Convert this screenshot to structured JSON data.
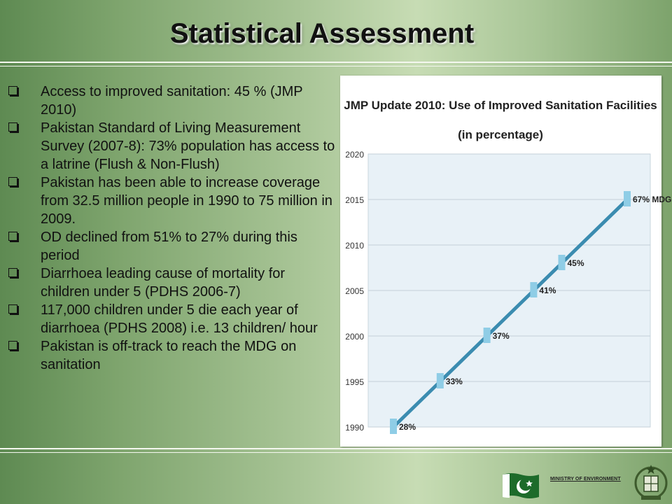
{
  "slide": {
    "title": "Statistical Assessment",
    "bullets": [
      "Access to improved sanitation: 45 % (JMP 2010)",
      "Pakistan Standard of Living Measurement Survey (2007-8): 73% population has access to a latrine (Flush & Non-Flush)",
      "Pakistan has been able to increase coverage from 32.5 million people in 1990 to 75 million in 2009.",
      "OD declined from 51% to 27% during this period",
      "Diarrhoea leading cause of mortality for children under 5 (PDHS 2006-7)",
      "117,000 children under 5 die each year of diarrhoea (PDHS 2008) i.e. 13 children/ hour",
      "Pakistan is off-track to reach the MDG on sanitation"
    ],
    "bullet_icon": "hollow-square-icon",
    "footer": "MINISTRY OF ENVIRONMENT",
    "colors": {
      "line": "#3b8cb0",
      "marker": "#8fcde6",
      "plot_bg": "#e8f1f7"
    }
  },
  "chart_data": {
    "type": "line",
    "title": "JMP Update 2010: Use of Improved Sanitation Facilities",
    "subtitle": "(in percentage)",
    "xlabel": "",
    "ylabel": "",
    "ylim": [
      1990,
      2020
    ],
    "y_ticks": [
      "1990",
      "1995",
      "2000",
      "2005",
      "2010",
      "2015",
      "2020"
    ],
    "grid": true,
    "points": [
      {
        "y": 1990,
        "label": "28%"
      },
      {
        "y": 1995,
        "label": "33%"
      },
      {
        "y": 2000,
        "label": "37%"
      },
      {
        "y": 2005,
        "label": "41%"
      },
      {
        "y": 2008,
        "label": "45%"
      },
      {
        "y": 2015,
        "label": "67% MDG"
      }
    ]
  }
}
